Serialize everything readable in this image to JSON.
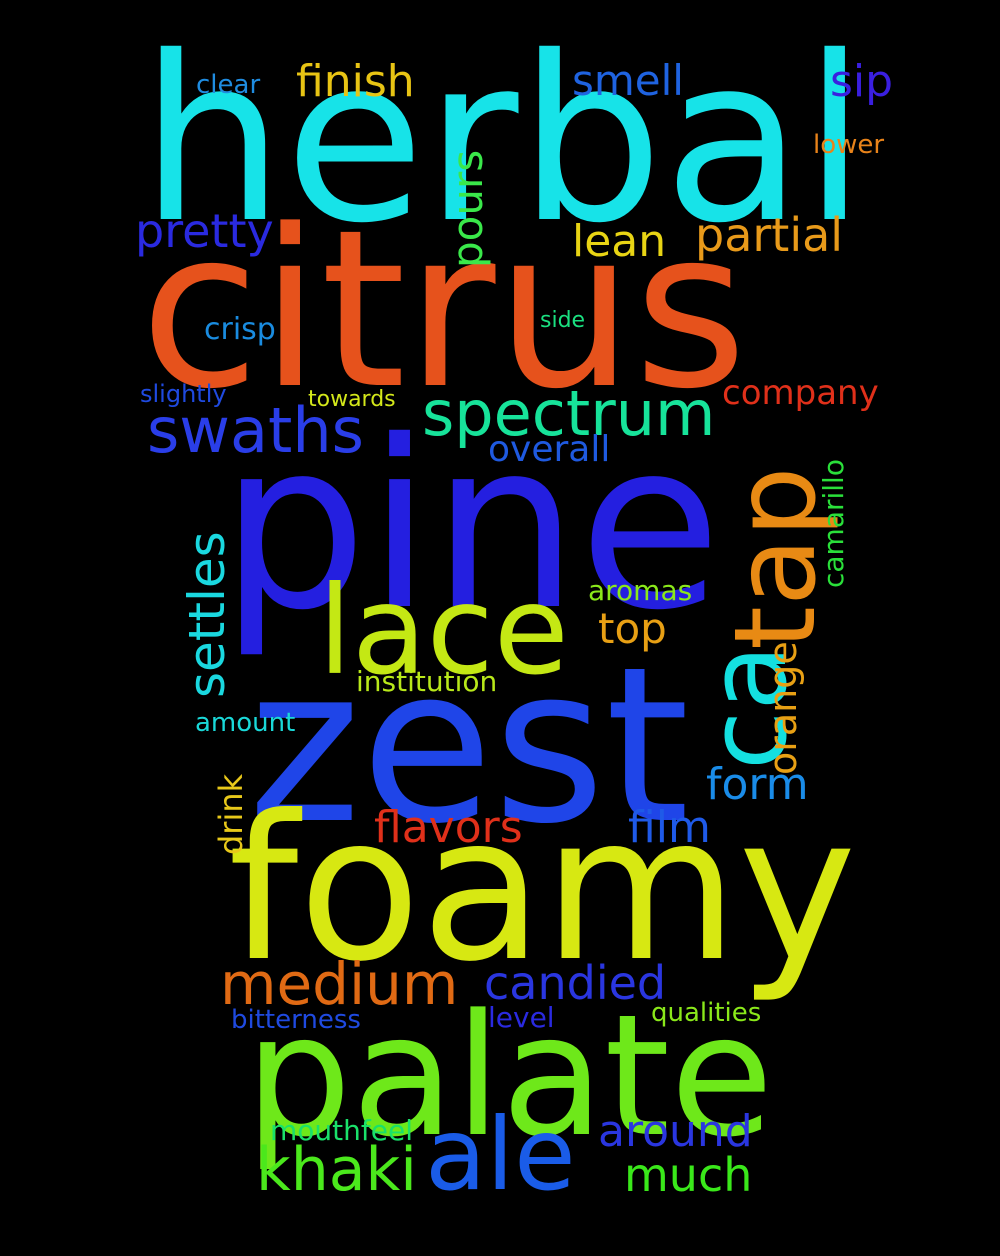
{
  "words": {
    "herbal": {
      "text": "herbal",
      "color": "#17e3e8"
    },
    "citrus": {
      "text": "citrus",
      "color": "#e6521c"
    },
    "pine": {
      "text": "pine",
      "color": "#241fe0"
    },
    "zest": {
      "text": "zest",
      "color": "#1f45e8"
    },
    "foamy": {
      "text": "foamy",
      "color": "#d7e812"
    },
    "palate": {
      "text": "palate",
      "color": "#6ee81a"
    },
    "lace": {
      "text": "lace",
      "color": "#c4e814"
    },
    "tap": {
      "text": "tap",
      "color": "#e88a14"
    },
    "ca": {
      "text": "ca",
      "color": "#14e0e0"
    },
    "ale": {
      "text": "ale",
      "color": "#1a5ce8"
    },
    "spectrum": {
      "text": "spectrum",
      "color": "#17e39a"
    },
    "swaths": {
      "text": "swaths",
      "color": "#2a3ee8"
    },
    "medium": {
      "text": "medium",
      "color": "#e06a14"
    },
    "khaki": {
      "text": "khaki",
      "color": "#4be81c"
    },
    "candied": {
      "text": "candied",
      "color": "#2a36e0"
    },
    "finish": {
      "text": "finish",
      "color": "#e8c414"
    },
    "smell": {
      "text": "smell",
      "color": "#1f63e0"
    },
    "sip": {
      "text": "sip",
      "color": "#3a1fe0"
    },
    "clear": {
      "text": "clear",
      "color": "#1f8ce0"
    },
    "lower": {
      "text": "lower",
      "color": "#e8831a"
    },
    "pretty": {
      "text": "pretty",
      "color": "#2a2ae0"
    },
    "pours": {
      "text": "pours",
      "color": "#3ae84a"
    },
    "lean": {
      "text": "lean",
      "color": "#e8d414"
    },
    "partial": {
      "text": "partial",
      "color": "#e89a1a"
    },
    "crisp": {
      "text": "crisp",
      "color": "#1a8ce0"
    },
    "side": {
      "text": "side",
      "color": "#1ae080"
    },
    "slightly": {
      "text": "slightly",
      "color": "#1f4ae0"
    },
    "towards": {
      "text": "towards",
      "color": "#d4e81a"
    },
    "company": {
      "text": "company",
      "color": "#e0301a"
    },
    "overall": {
      "text": "overall",
      "color": "#1f5ae0"
    },
    "settles": {
      "text": "settles",
      "color": "#1ad8e0"
    },
    "camarillo": {
      "text": "camarillo",
      "color": "#2ae03a"
    },
    "aromas": {
      "text": "aromas",
      "color": "#8ae81a"
    },
    "top": {
      "text": "top",
      "color": "#e8a014"
    },
    "orange": {
      "text": "orange",
      "color": "#e8a014"
    },
    "institution": {
      "text": "institution",
      "color": "#b8e81a"
    },
    "amount": {
      "text": "amount",
      "color": "#1ad8d8"
    },
    "drink": {
      "text": "drink",
      "color": "#e8c81a"
    },
    "form": {
      "text": "form",
      "color": "#1a8ce8"
    },
    "flavors": {
      "text": "flavors",
      "color": "#e0301a"
    },
    "film": {
      "text": "film",
      "color": "#1f5ae8"
    },
    "bitterness": {
      "text": "bitterness",
      "color": "#1f4ae0"
    },
    "level": {
      "text": "level",
      "color": "#2a2ae0"
    },
    "qualities": {
      "text": "qualities",
      "color": "#8ae81a"
    },
    "mouthfeel": {
      "text": "mouthfeel",
      "color": "#1ae06a"
    },
    "around": {
      "text": "around",
      "color": "#2a36e0"
    },
    "much": {
      "text": "much",
      "color": "#3ae81a"
    }
  }
}
